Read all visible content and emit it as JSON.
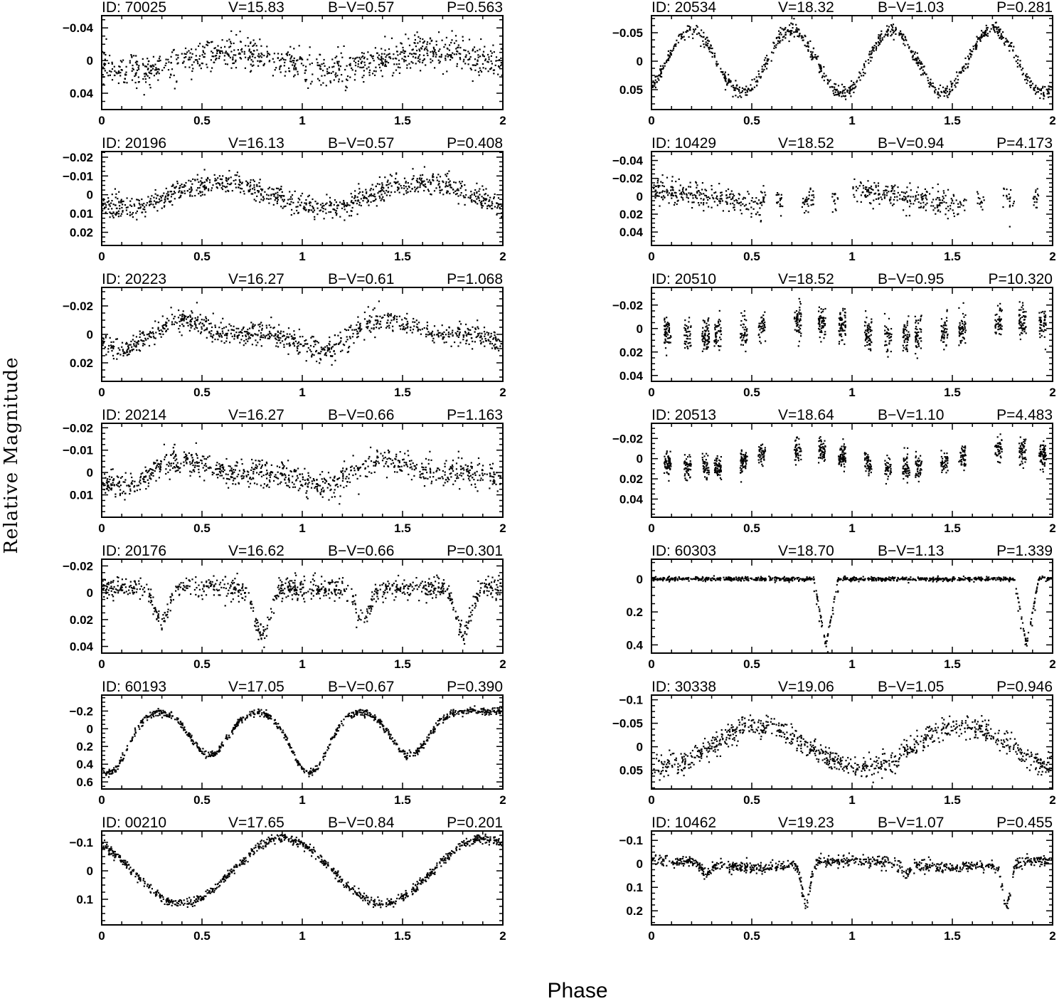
{
  "figure": {
    "xlabel": "Phase",
    "ylabel": "Relative Magnitude"
  },
  "chart_data": [
    {
      "type": "scatter",
      "column": "left",
      "id_label": "ID: 70025",
      "v_label": "V=15.83",
      "bv_label": "B−V=0.57",
      "p_label": "P=0.563",
      "ylim": [
        0.06,
        -0.055
      ],
      "yticks": [
        -0.04,
        0,
        0.04
      ],
      "ytick_labels": [
        "−0.04",
        "0",
        "0.04"
      ],
      "xlim": [
        0,
        2
      ],
      "xticks": [
        0,
        0.5,
        1,
        1.5,
        2
      ],
      "xtick_labels": [
        "0",
        "0.5",
        "1",
        "1.5",
        "2"
      ],
      "shape": "sine",
      "amplitude": 0.012,
      "scatter": 0.01,
      "minima": []
    },
    {
      "type": "scatter",
      "column": "left",
      "id_label": "ID: 20196",
      "v_label": "V=16.13",
      "bv_label": "B−V=0.57",
      "p_label": "P=0.408",
      "ylim": [
        0.027,
        -0.023
      ],
      "yticks": [
        -0.02,
        -0.01,
        0,
        0.01,
        0.02
      ],
      "ytick_labels": [
        "−0.02",
        "−0.01",
        "0",
        "0.01",
        "0.02"
      ],
      "xlim": [
        0,
        2
      ],
      "xticks": [
        0,
        0.5,
        1,
        1.5,
        2
      ],
      "xtick_labels": [
        "0",
        "0.5",
        "1",
        "1.5",
        "2"
      ],
      "shape": "sine",
      "amplitude": 0.007,
      "scatter": 0.003,
      "minima": []
    },
    {
      "type": "scatter",
      "column": "left",
      "id_label": "ID: 20223",
      "v_label": "V=16.27",
      "bv_label": "B−V=0.61",
      "p_label": "P=1.068",
      "ylim": [
        0.033,
        -0.033
      ],
      "yticks": [
        -0.02,
        0,
        0.02
      ],
      "ytick_labels": [
        "−0.02",
        "0",
        "0.02"
      ],
      "xlim": [
        0,
        2
      ],
      "xticks": [
        0,
        0.5,
        1,
        1.5,
        2
      ],
      "xtick_labels": [
        "0",
        "0.5",
        "1",
        "1.5",
        "2"
      ],
      "shape": "spotted",
      "amplitude": 0.015,
      "scatter": 0.004,
      "minima": []
    },
    {
      "type": "scatter",
      "column": "left",
      "id_label": "ID: 20214",
      "v_label": "V=16.27",
      "bv_label": "B−V=0.66",
      "p_label": "P=1.163",
      "ylim": [
        0.02,
        -0.022
      ],
      "yticks": [
        -0.02,
        -0.01,
        0,
        0.01
      ],
      "ytick_labels": [
        "−0.02",
        "−0.01",
        "0",
        "0.01"
      ],
      "xlim": [
        0,
        2
      ],
      "xticks": [
        0,
        0.5,
        1,
        1.5,
        2
      ],
      "xtick_labels": [
        "0",
        "0.5",
        "1",
        "1.5",
        "2"
      ],
      "shape": "spotted",
      "amplitude": 0.008,
      "scatter": 0.003,
      "minima": []
    },
    {
      "type": "scatter",
      "column": "left",
      "id_label": "ID: 20176",
      "v_label": "V=16.62",
      "bv_label": "B−V=0.66",
      "p_label": "P=0.301",
      "ylim": [
        0.045,
        -0.025
      ],
      "yticks": [
        -0.02,
        0,
        0.02,
        0.04
      ],
      "ytick_labels": [
        "−0.02",
        "0",
        "0.02",
        "0.04"
      ],
      "xlim": [
        0,
        2
      ],
      "xticks": [
        0,
        0.5,
        1,
        1.5,
        2
      ],
      "xtick_labels": [
        "0",
        "0.5",
        "1",
        "1.5",
        "2"
      ],
      "shape": "ew",
      "amplitude": 0.012,
      "scatter": 0.004,
      "minima": [
        {
          "phase": 0.3,
          "depth": 0.025
        },
        {
          "phase": 0.8,
          "depth": 0.035
        },
        {
          "phase": 1.3,
          "depth": 0.025
        },
        {
          "phase": 1.8,
          "depth": 0.035
        }
      ]
    },
    {
      "type": "scatter",
      "column": "left",
      "id_label": "ID: 60193",
      "v_label": "V=17.05",
      "bv_label": "B−V=0.67",
      "p_label": "P=0.390",
      "ylim": [
        0.68,
        -0.38
      ],
      "yticks": [
        -0.2,
        0,
        0.2,
        0.4,
        0.6
      ],
      "ytick_labels": [
        "−0.2",
        "0",
        "0.2",
        "0.4",
        "0.6"
      ],
      "xlim": [
        0,
        2
      ],
      "xticks": [
        0,
        0.5,
        1,
        1.5,
        2
      ],
      "xtick_labels": [
        "0",
        "0.5",
        "1",
        "1.5",
        "2"
      ],
      "shape": "eclipsing",
      "amplitude": 0.0,
      "scatter": 0.02,
      "maximum": -0.2,
      "minima": [
        {
          "phase": 0.535,
          "depth": 0.3
        },
        {
          "phase": 1.035,
          "depth": 0.5
        },
        {
          "phase": 1.535,
          "depth": 0.3
        },
        {
          "phase": 0.035,
          "depth": 0.5
        }
      ]
    },
    {
      "type": "scatter",
      "column": "left",
      "id_label": "ID: 00210",
      "v_label": "V=17.65",
      "bv_label": "B−V=0.84",
      "p_label": "P=0.201",
      "ylim": [
        0.19,
        -0.14
      ],
      "yticks": [
        -0.1,
        0,
        0.1
      ],
      "ytick_labels": [
        "−0.1",
        "0",
        "0.1"
      ],
      "xlim": [
        0,
        2
      ],
      "xticks": [
        0,
        0.5,
        1,
        1.5,
        2
      ],
      "xtick_labels": [
        "0",
        "0.5",
        "1",
        "1.5",
        "2"
      ],
      "shape": "sine",
      "amplitude": 0.115,
      "scatter": 0.008,
      "minima": []
    },
    {
      "type": "scatter",
      "column": "right",
      "id_label": "ID: 20534",
      "v_label": "V=18.32",
      "bv_label": "B−V=1.03",
      "p_label": "P=0.281",
      "ylim": [
        0.085,
        -0.08
      ],
      "yticks": [
        -0.05,
        0,
        0.05
      ],
      "ytick_labels": [
        "−0.05",
        "0",
        "0.05"
      ],
      "xlim": [
        0,
        2
      ],
      "xticks": [
        0,
        0.5,
        1,
        1.5,
        2
      ],
      "xtick_labels": [
        "0",
        "0.5",
        "1",
        "1.5",
        "2"
      ],
      "shape": "sine",
      "amplitude": 0.055,
      "scatter": 0.006,
      "minima": []
    },
    {
      "type": "scatter",
      "column": "right",
      "id_label": "ID: 10429",
      "v_label": "V=18.52",
      "bv_label": "B−V=0.94",
      "p_label": "P=4.173",
      "ylim": [
        0.055,
        -0.05
      ],
      "yticks": [
        -0.04,
        -0.02,
        0,
        0.02,
        0.04
      ],
      "ytick_labels": [
        "−0.04",
        "−0.02",
        "0",
        "0.02",
        "0.04"
      ],
      "xlim": [
        0,
        2
      ],
      "xticks": [
        0,
        0.5,
        1,
        1.5,
        2
      ],
      "xtick_labels": [
        "0",
        "0.5",
        "1",
        "1.5",
        "2"
      ],
      "shape": "gappy",
      "amplitude": 0.013,
      "scatter": 0.007,
      "minima": []
    },
    {
      "type": "scatter",
      "column": "right",
      "id_label": "ID: 20510",
      "v_label": "V=18.52",
      "bv_label": "B−V=0.95",
      "p_label": "P=10.320",
      "ylim": [
        0.045,
        -0.035
      ],
      "yticks": [
        -0.02,
        0,
        0.02,
        0.04
      ],
      "ytick_labels": [
        "−0.02",
        "0",
        "0.02",
        "0.04"
      ],
      "xlim": [
        0,
        2
      ],
      "xticks": [
        0,
        0.5,
        1,
        1.5,
        2
      ],
      "xtick_labels": [
        "0",
        "0.5",
        "1",
        "1.5",
        "2"
      ],
      "shape": "clumps",
      "amplitude": 0.008,
      "scatter": 0.007,
      "minima": []
    },
    {
      "type": "scatter",
      "column": "right",
      "id_label": "ID: 20513",
      "v_label": "V=18.64",
      "bv_label": "B−V=1.10",
      "p_label": "P=4.483",
      "ylim": [
        0.058,
        -0.035
      ],
      "yticks": [
        -0.02,
        0,
        0.02,
        0.04
      ],
      "ytick_labels": [
        "−0.02",
        "0",
        "0.02",
        "0.04"
      ],
      "xlim": [
        0,
        2
      ],
      "xticks": [
        0,
        0.5,
        1,
        1.5,
        2
      ],
      "xtick_labels": [
        "0",
        "0.5",
        "1",
        "1.5",
        "2"
      ],
      "shape": "clumps",
      "amplitude": 0.012,
      "scatter": 0.006,
      "minima": []
    },
    {
      "type": "scatter",
      "column": "right",
      "id_label": "ID: 60303",
      "v_label": "V=18.70",
      "bv_label": "B−V=1.13",
      "p_label": "P=1.339",
      "ylim": [
        0.45,
        -0.12
      ],
      "yticks": [
        0,
        0.2,
        0.4
      ],
      "ytick_labels": [
        "0",
        "0.2",
        "0.4"
      ],
      "xlim": [
        0,
        2
      ],
      "xticks": [
        0,
        0.5,
        1,
        1.5,
        2
      ],
      "xtick_labels": [
        "0",
        "0.5",
        "1",
        "1.5",
        "2"
      ],
      "shape": "detached",
      "amplitude": 0.0,
      "scatter": 0.006,
      "minima": [
        {
          "phase": 0.87,
          "depth": 0.4
        },
        {
          "phase": 1.87,
          "depth": 0.4
        }
      ]
    },
    {
      "type": "scatter",
      "column": "right",
      "id_label": "ID: 30338",
      "v_label": "V=19.06",
      "bv_label": "B−V=1.05",
      "p_label": "P=0.946",
      "ylim": [
        0.09,
        -0.11
      ],
      "yticks": [
        -0.1,
        -0.05,
        0,
        0.05
      ],
      "ytick_labels": [
        "−0.1",
        "−0.05",
        "0",
        "0.05"
      ],
      "xlim": [
        0,
        2
      ],
      "xticks": [
        0,
        0.5,
        1,
        1.5,
        2
      ],
      "xtick_labels": [
        "0",
        "0.5",
        "1",
        "1.5",
        "2"
      ],
      "shape": "sine",
      "amplitude": 0.045,
      "scatter": 0.012,
      "minima": []
    },
    {
      "type": "scatter",
      "column": "right",
      "id_label": "ID: 10462",
      "v_label": "V=19.23",
      "bv_label": "B−V=1.07",
      "p_label": "P=0.455",
      "ylim": [
        0.26,
        -0.14
      ],
      "yticks": [
        -0.1,
        0,
        0.1,
        0.2
      ],
      "ytick_labels": [
        "−0.1",
        "0",
        "0.1",
        "0.2"
      ],
      "xlim": [
        0,
        2
      ],
      "xticks": [
        0,
        0.5,
        1,
        1.5,
        2
      ],
      "xtick_labels": [
        "0",
        "0.5",
        "1",
        "1.5",
        "2"
      ],
      "shape": "ea",
      "amplitude": 0.02,
      "scatter": 0.012,
      "minima": [
        {
          "phase": 0.27,
          "depth": 0.04
        },
        {
          "phase": 0.77,
          "depth": 0.18
        },
        {
          "phase": 1.27,
          "depth": 0.04
        },
        {
          "phase": 1.77,
          "depth": 0.18
        }
      ]
    }
  ]
}
